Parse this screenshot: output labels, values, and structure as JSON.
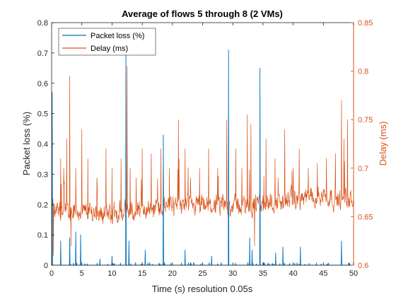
{
  "chart_data": {
    "type": "line",
    "title": "Average of flows 5 through 8 (2 VMs)",
    "xlabel": "Time (s) resolution 0.05s",
    "ylabel_left": "Packet loss (%)",
    "ylabel_right": "Delay (ms)",
    "xlim": [
      0,
      50
    ],
    "ylim_left": [
      0,
      0.8
    ],
    "ylim_right": [
      0.6,
      0.85
    ],
    "x_ticks": [
      0,
      5,
      10,
      15,
      20,
      25,
      30,
      35,
      40,
      45,
      50
    ],
    "y_ticks_left": [
      0,
      0.1,
      0.2,
      0.3,
      0.4,
      0.5,
      0.6,
      0.7,
      0.8
    ],
    "y_ticks_right": [
      0.6,
      0.65,
      0.7,
      0.75,
      0.8,
      0.85
    ],
    "grid": false,
    "legend_position": "top-left",
    "sample_interval_s": 0.05,
    "series": [
      {
        "name": "Packet loss (%)",
        "axis": "left",
        "color": "#0072BD",
        "baseline": 0.003,
        "spikes": [
          {
            "x": 0.1,
            "y": 0.57
          },
          {
            "x": 1.5,
            "y": 0.08
          },
          {
            "x": 3.0,
            "y": 0.09
          },
          {
            "x": 4.0,
            "y": 0.11
          },
          {
            "x": 4.8,
            "y": 0.1
          },
          {
            "x": 8.0,
            "y": 0.02
          },
          {
            "x": 10.0,
            "y": 0.03
          },
          {
            "x": 12.3,
            "y": 0.7
          },
          {
            "x": 12.8,
            "y": 0.08
          },
          {
            "x": 15.5,
            "y": 0.05
          },
          {
            "x": 18.5,
            "y": 0.43
          },
          {
            "x": 22.1,
            "y": 0.05
          },
          {
            "x": 26.5,
            "y": 0.03
          },
          {
            "x": 29.3,
            "y": 0.71
          },
          {
            "x": 32.8,
            "y": 0.09
          },
          {
            "x": 33.2,
            "y": 0.05
          },
          {
            "x": 34.5,
            "y": 0.65
          },
          {
            "x": 37.1,
            "y": 0.04
          },
          {
            "x": 38.3,
            "y": 0.06
          },
          {
            "x": 41.2,
            "y": 0.06
          },
          {
            "x": 48.0,
            "y": 0.08
          }
        ]
      },
      {
        "name": "Delay (ms)",
        "axis": "right",
        "color": "#D95319",
        "trend": [
          {
            "x": 0,
            "y": 0.658
          },
          {
            "x": 5,
            "y": 0.655
          },
          {
            "x": 10,
            "y": 0.653
          },
          {
            "x": 15,
            "y": 0.657
          },
          {
            "x": 20,
            "y": 0.662
          },
          {
            "x": 25,
            "y": 0.66
          },
          {
            "x": 30,
            "y": 0.662
          },
          {
            "x": 35,
            "y": 0.663
          },
          {
            "x": 40,
            "y": 0.668
          },
          {
            "x": 45,
            "y": 0.672
          },
          {
            "x": 50,
            "y": 0.665
          }
        ],
        "spikes": [
          {
            "x": 0.1,
            "y": 0.74
          },
          {
            "x": 0.3,
            "y": 0.61
          },
          {
            "x": 1.5,
            "y": 0.71
          },
          {
            "x": 2.0,
            "y": 0.7
          },
          {
            "x": 2.5,
            "y": 0.73
          },
          {
            "x": 3.0,
            "y": 0.795
          },
          {
            "x": 3.2,
            "y": 0.62
          },
          {
            "x": 4.0,
            "y": 0.7
          },
          {
            "x": 5.0,
            "y": 0.74
          },
          {
            "x": 6.0,
            "y": 0.71
          },
          {
            "x": 7.5,
            "y": 0.69
          },
          {
            "x": 8.1,
            "y": 0.66
          },
          {
            "x": 9.0,
            "y": 0.72
          },
          {
            "x": 10.0,
            "y": 0.7
          },
          {
            "x": 11.5,
            "y": 0.71
          },
          {
            "x": 12.5,
            "y": 0.805
          },
          {
            "x": 13.0,
            "y": 0.7
          },
          {
            "x": 14.0,
            "y": 0.69
          },
          {
            "x": 15.0,
            "y": 0.72
          },
          {
            "x": 16.5,
            "y": 0.715
          },
          {
            "x": 18.1,
            "y": 0.72
          },
          {
            "x": 18.5,
            "y": 0.73
          },
          {
            "x": 19.5,
            "y": 0.7
          },
          {
            "x": 21.0,
            "y": 0.75
          },
          {
            "x": 22.1,
            "y": 0.72
          },
          {
            "x": 23.0,
            "y": 0.69
          },
          {
            "x": 24.5,
            "y": 0.7
          },
          {
            "x": 26.0,
            "y": 0.72
          },
          {
            "x": 27.5,
            "y": 0.7
          },
          {
            "x": 29.0,
            "y": 0.75
          },
          {
            "x": 29.3,
            "y": 0.74
          },
          {
            "x": 30.5,
            "y": 0.72
          },
          {
            "x": 31.5,
            "y": 0.7
          },
          {
            "x": 32.4,
            "y": 0.755
          },
          {
            "x": 33.0,
            "y": 0.745
          },
          {
            "x": 33.6,
            "y": 0.62
          },
          {
            "x": 34.5,
            "y": 0.7
          },
          {
            "x": 35.5,
            "y": 0.73
          },
          {
            "x": 37.0,
            "y": 0.71
          },
          {
            "x": 37.5,
            "y": 0.69
          },
          {
            "x": 38.6,
            "y": 0.74
          },
          {
            "x": 40.0,
            "y": 0.7
          },
          {
            "x": 41.0,
            "y": 0.72
          },
          {
            "x": 42.5,
            "y": 0.7
          },
          {
            "x": 44.0,
            "y": 0.705
          },
          {
            "x": 45.5,
            "y": 0.71
          },
          {
            "x": 47.0,
            "y": 0.715
          },
          {
            "x": 48.0,
            "y": 0.77
          },
          {
            "x": 48.4,
            "y": 0.73
          },
          {
            "x": 49.0,
            "y": 0.75
          }
        ]
      }
    ]
  }
}
